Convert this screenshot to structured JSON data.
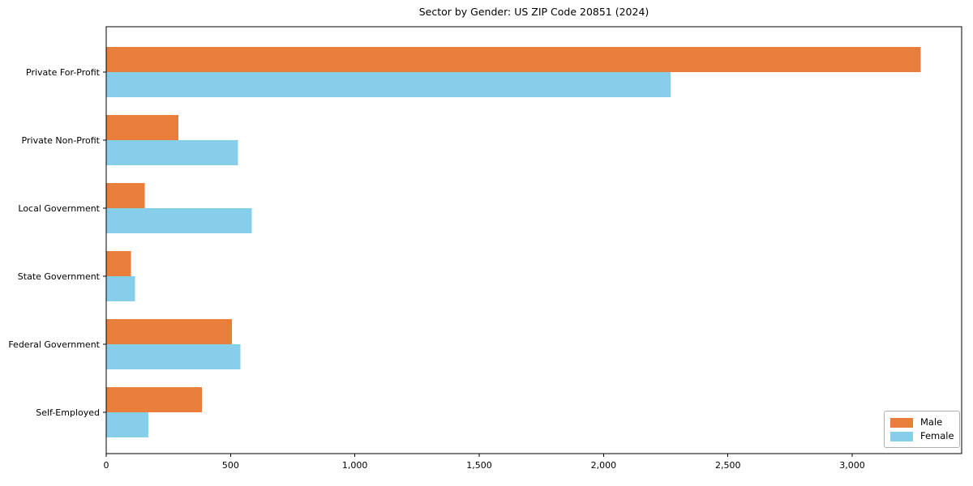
{
  "figure": {
    "title": "Sector by Gender: US ZIP Code 20851 (2024)"
  },
  "chart_data": {
    "type": "bar",
    "orientation": "horizontal",
    "title": "Sector by Gender: US ZIP Code 20851 (2024)",
    "categories": [
      "Private For-Profit",
      "Private Non-Profit",
      "Local Government",
      "State Government",
      "Federal Government",
      "Self-Employed"
    ],
    "series": [
      {
        "name": "Male",
        "color": "#e87d3c",
        "values": [
          3275,
          290,
          155,
          100,
          505,
          385
        ]
      },
      {
        "name": "Female",
        "color": "#87ceeb",
        "values": [
          2270,
          530,
          585,
          115,
          540,
          170
        ]
      }
    ],
    "xlabel": "",
    "ylabel": "",
    "xlim": [
      0,
      3440
    ],
    "xticks": [
      0,
      500,
      1000,
      1500,
      2000,
      2500,
      3000
    ],
    "xtick_labels": [
      "0",
      "500",
      "1,000",
      "1,500",
      "2,000",
      "2,500",
      "3,000"
    ],
    "grid": false,
    "legend": {
      "position": "lower-right"
    },
    "axis_color": "#000000",
    "text_color": "#000000"
  }
}
